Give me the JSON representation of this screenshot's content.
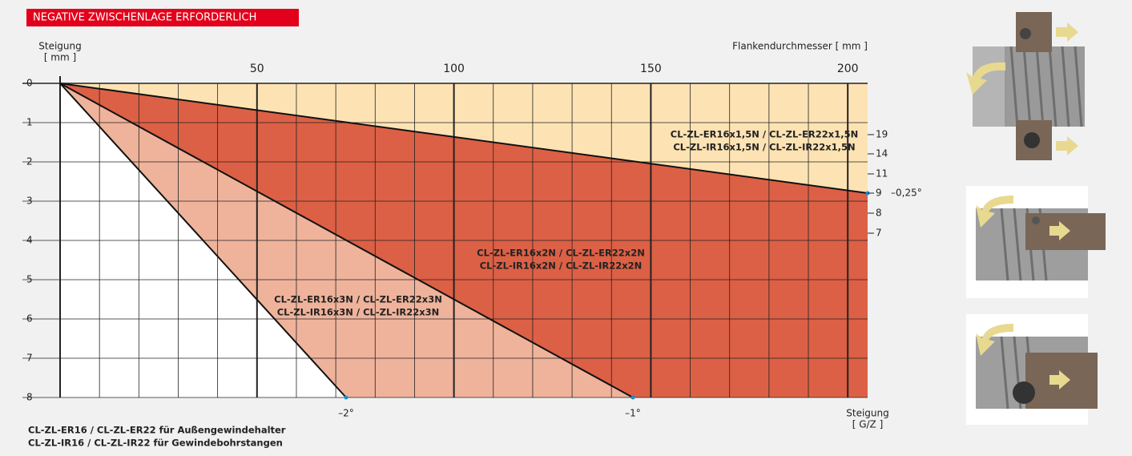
{
  "banner": "NEGATIVE ZWISCHENLAGE ERFORDERLICH",
  "y_axis": {
    "label_lines": [
      "Steigung",
      "[ mm ]"
    ],
    "ticks": [
      0,
      1,
      2,
      3,
      4,
      5,
      6,
      7,
      8
    ]
  },
  "x_axis": {
    "label": "Flankendurchmesser [ mm ]",
    "ticks": [
      50,
      100,
      150,
      200
    ]
  },
  "pitch_scale": {
    "ticks": [
      19,
      14,
      11,
      9,
      8,
      7
    ],
    "angle": "–0,25°"
  },
  "angle_labels": [
    "–2°",
    "–1°"
  ],
  "pitch_axis_label_lines": [
    "Steigung",
    "[ G/Z ]"
  ],
  "regions": [
    {
      "lines": [
        "CL-ZL-ER16x1,5N / CL-ZL-ER22x1,5N",
        "CL-ZL-IR16x1,5N / CL-ZL-IR22x1,5N"
      ]
    },
    {
      "lines": [
        "CL-ZL-ER16x2N / CL-ZL-ER22x2N",
        "CL-ZL-IR16x2N / CL-ZL-IR22x2N"
      ]
    },
    {
      "lines": [
        "CL-ZL-ER16x3N / CL-ZL-ER22x3N",
        "CL-ZL-IR16x3N / CL-ZL-IR22x3N"
      ]
    }
  ],
  "footer": [
    "CL-ZL-ER16 / CL-ZL-ER22 für Außengewindehalter",
    "CL-ZL-IR16 / CL-ZL-IR22 für Gewindebohrstangen"
  ]
}
